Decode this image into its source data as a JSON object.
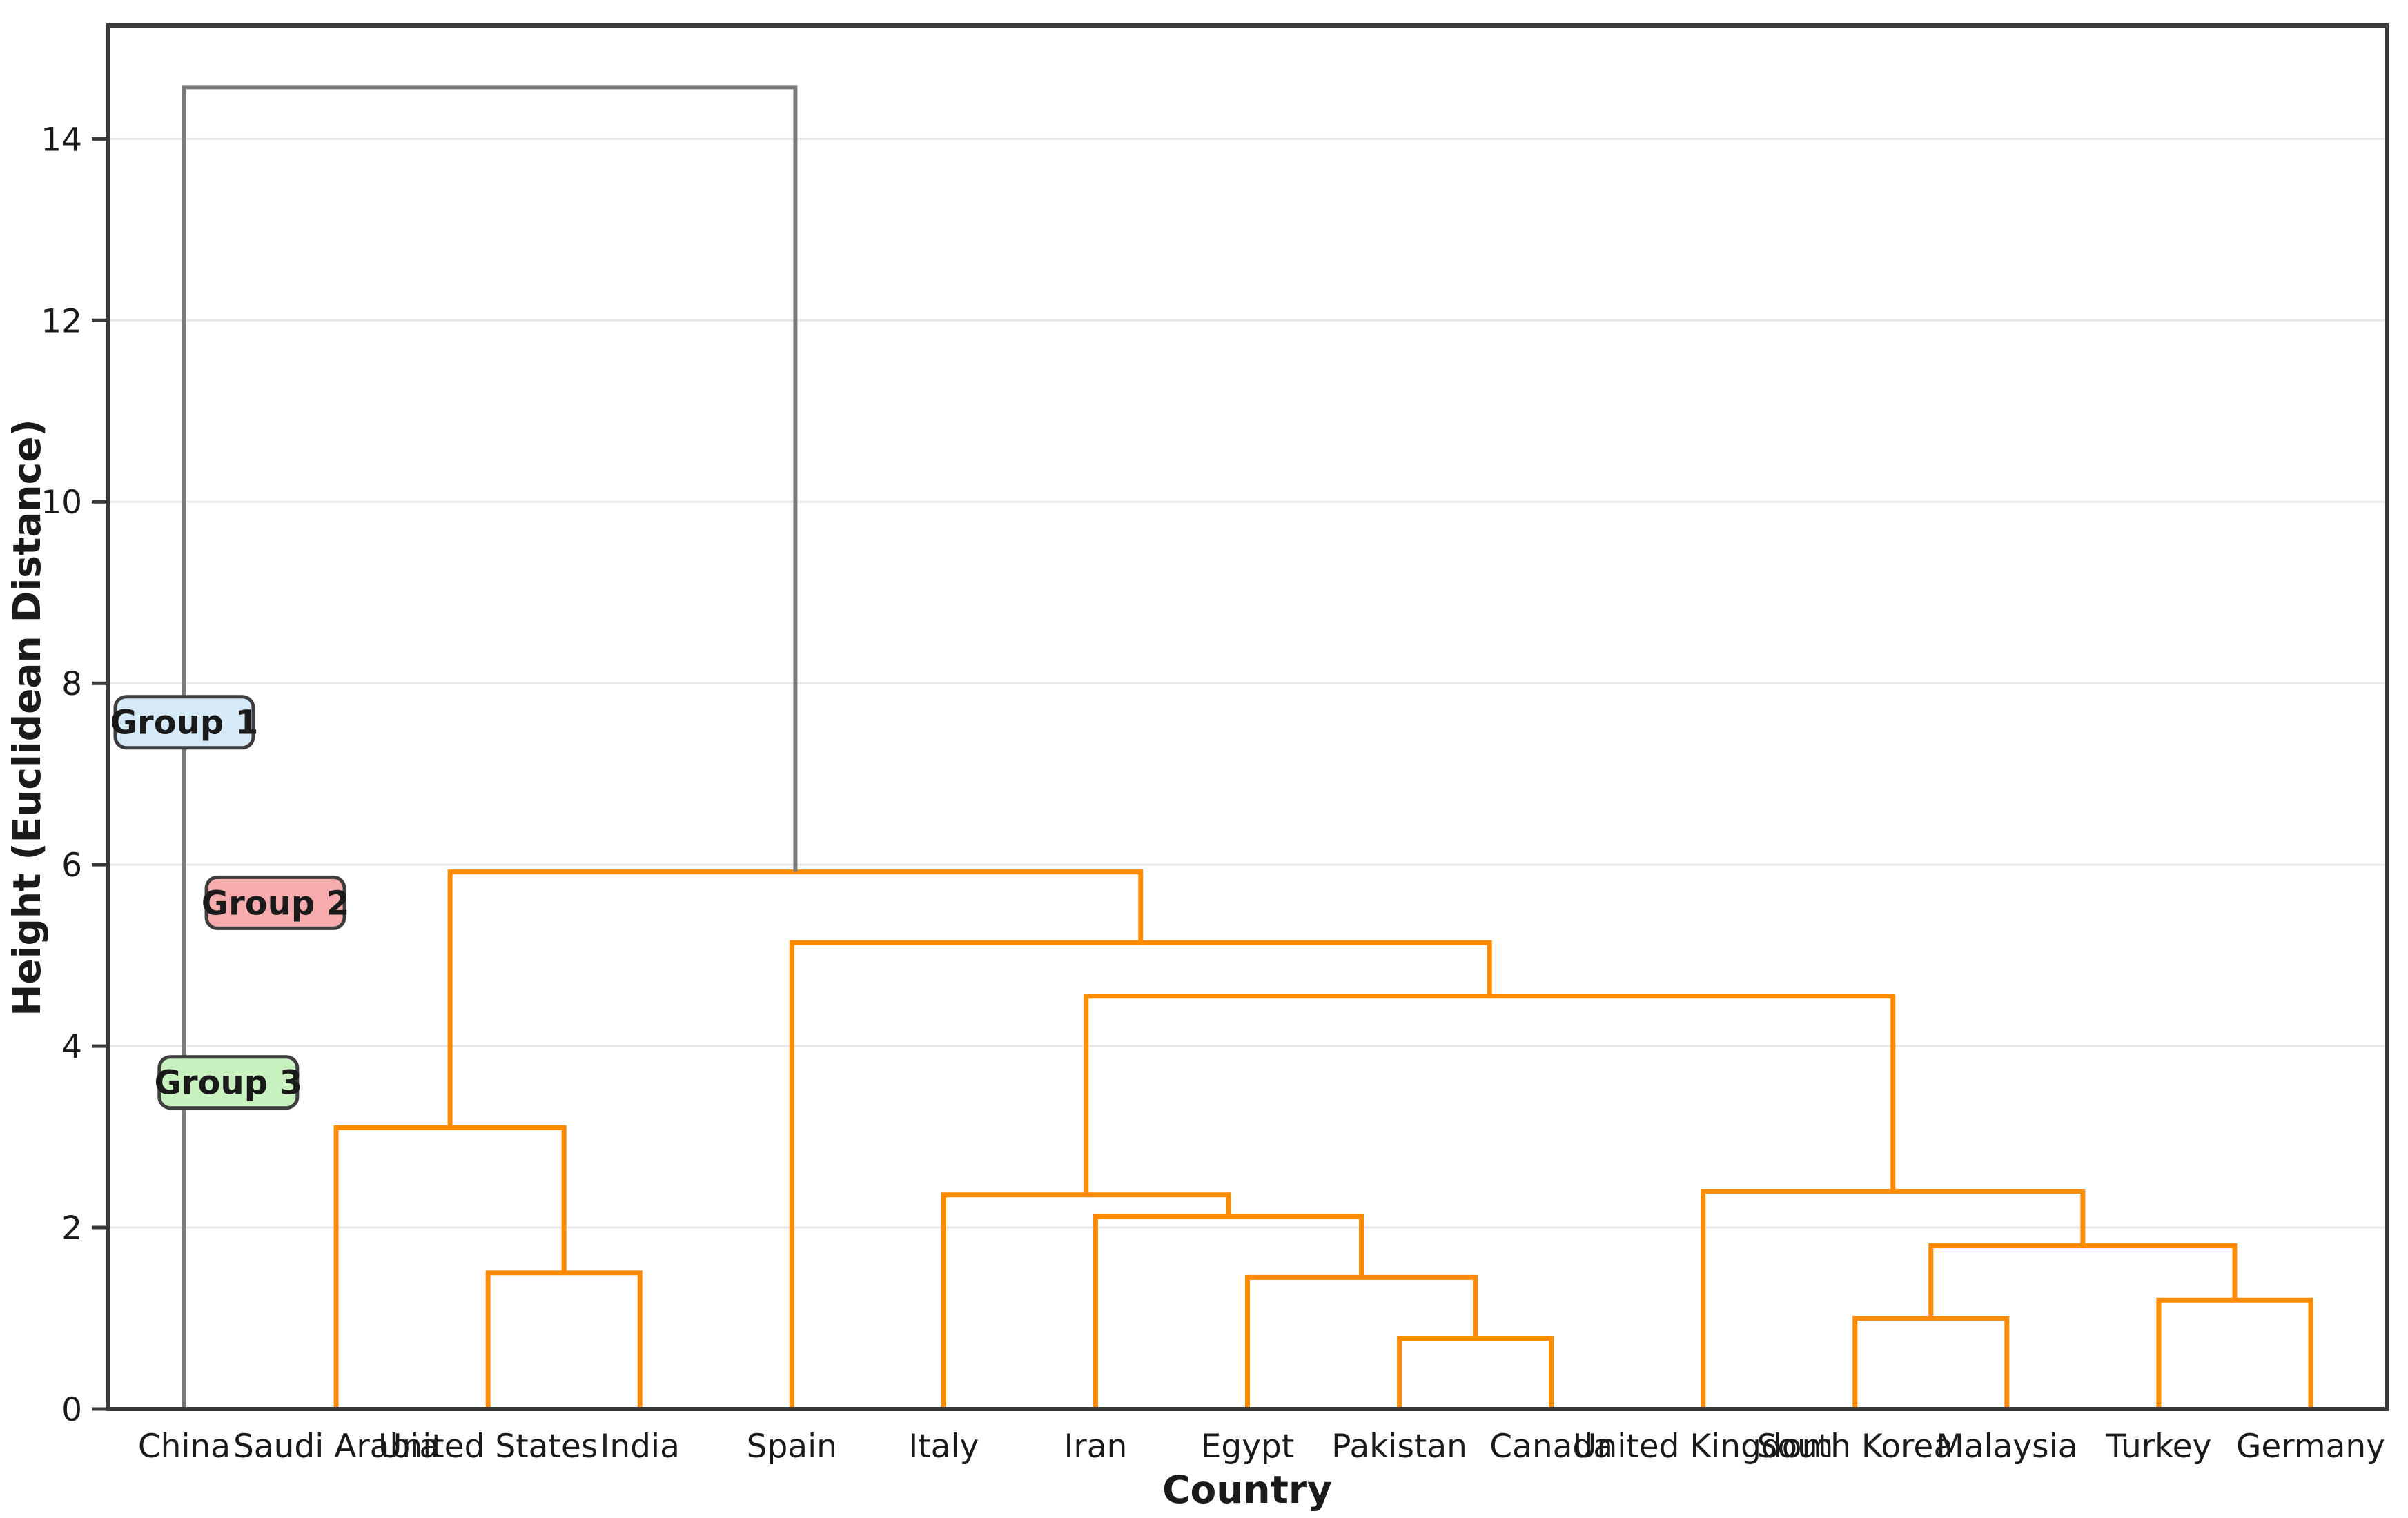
{
  "figure": {
    "background": "#ffffff"
  },
  "chart_data": {
    "type": "dendrogram",
    "title": "",
    "xlabel": "Country",
    "ylabel": "Height (Euclidean Distance)",
    "categories": [
      "China",
      "Saudi Arabia",
      "United States",
      "India",
      "Spain",
      "Italy",
      "Iran",
      "Egypt",
      "Pakistan",
      "Canada",
      "United Kingdom",
      "South Korea",
      "Malaysia",
      "Turkey",
      "Germany"
    ],
    "linkage": [
      {
        "a": 2,
        "b": 3,
        "height": 1.5
      },
      {
        "a": 1,
        "b": 15,
        "height": 3.1
      },
      {
        "a": 8,
        "b": 9,
        "height": 0.78
      },
      {
        "a": 7,
        "b": 17,
        "height": 1.45
      },
      {
        "a": 6,
        "b": 18,
        "height": 2.12
      },
      {
        "a": 5,
        "b": 19,
        "height": 2.36
      },
      {
        "a": 11,
        "b": 12,
        "height": 1.0
      },
      {
        "a": 13,
        "b": 14,
        "height": 1.2
      },
      {
        "a": 21,
        "b": 22,
        "height": 1.8
      },
      {
        "a": 10,
        "b": 23,
        "height": 2.4
      },
      {
        "a": 20,
        "b": 24,
        "height": 4.55
      },
      {
        "a": 4,
        "b": 25,
        "height": 5.14
      },
      {
        "a": 16,
        "b": 26,
        "height": 5.92
      },
      {
        "a": 0,
        "b": 27,
        "height": 14.57
      }
    ],
    "ylim": [
      0,
      15.25
    ],
    "yticks": [
      0,
      2,
      4,
      6,
      8,
      10,
      12,
      14
    ],
    "grid": "horizontal",
    "legend": "none",
    "link_color": "#FF8C00",
    "top_link_color": "#7a7a7a",
    "grid_color": "#e7e7e7",
    "spine_color": "#3a3a3a",
    "annotations": [
      {
        "label": "Group 1",
        "x": 0.0,
        "y": 7.57,
        "text_color": "#0202ee",
        "fill": "#d5eaf6",
        "border": "#3e3e3e"
      },
      {
        "label": "Group 2",
        "x": 0.6,
        "y": 5.58,
        "text_color": "#f40000",
        "fill": "#f6acac",
        "border": "#3e3e3e"
      },
      {
        "label": "Group 3",
        "x": 0.29,
        "y": 3.6,
        "text_color": "#0a7d0a",
        "fill": "#c8f1c0",
        "border": "#3e3e3e"
      }
    ]
  }
}
